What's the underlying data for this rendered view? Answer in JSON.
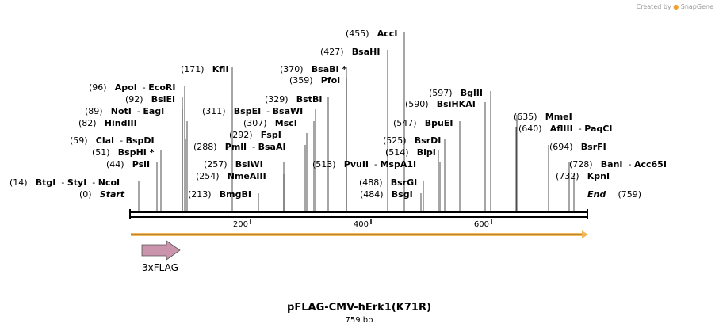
{
  "branding": {
    "label": "Created by",
    "name": "SnapGene"
  },
  "map": {
    "name": "pFLAG-CMV-hErk1(K71R)",
    "length_label": "759 bp"
  },
  "ruler": {
    "ticks": [
      "200",
      "400",
      "600"
    ]
  },
  "feature": {
    "name": "3xFLAG",
    "color": "#c994ac"
  },
  "orf_color": "#f0b65a",
  "labels": [
    {
      "pos": "(455)",
      "names": [
        "AccI"
      ]
    },
    {
      "pos": "(427)",
      "names": [
        "BsaHI"
      ]
    },
    {
      "pos": "(171)",
      "names": [
        "KflI"
      ]
    },
    {
      "pos": "(370)",
      "names": [
        "BsaBI *"
      ]
    },
    {
      "pos": "(96)",
      "names": [
        "ApoI",
        "EcoRI"
      ]
    },
    {
      "pos": "(359)",
      "names": [
        "PfoI"
      ]
    },
    {
      "pos": "(92)",
      "names": [
        "BsiEI"
      ]
    },
    {
      "pos": "(597)",
      "names": [
        "BglII"
      ]
    },
    {
      "pos": "(329)",
      "names": [
        "BstBI"
      ]
    },
    {
      "pos": "(590)",
      "names": [
        "BsiHKAI"
      ]
    },
    {
      "pos": "(89)",
      "names": [
        "NotI",
        "EagI"
      ]
    },
    {
      "pos": "(311)",
      "names": [
        "BspEI",
        "BsaWI"
      ]
    },
    {
      "pos": "(635)",
      "names": [
        "MmeI"
      ]
    },
    {
      "pos": "(82)",
      "names": [
        "HindIII"
      ]
    },
    {
      "pos": "(307)",
      "names": [
        "MscI"
      ]
    },
    {
      "pos": "(547)",
      "names": [
        "BpuEI"
      ]
    },
    {
      "pos": "(640)",
      "names": [
        "AflIII",
        "PaqCI"
      ]
    },
    {
      "pos": "(292)",
      "names": [
        "FspI"
      ]
    },
    {
      "pos": "(59)",
      "names": [
        "ClaI",
        "BspDI"
      ]
    },
    {
      "pos": "(525)",
      "names": [
        "BsrDI"
      ]
    },
    {
      "pos": "(288)",
      "names": [
        "PmlI",
        "BsaAI"
      ]
    },
    {
      "pos": "(694)",
      "names": [
        "BsrFI"
      ]
    },
    {
      "pos": "(51)",
      "names": [
        "BspHI *"
      ]
    },
    {
      "pos": "(514)",
      "names": [
        "BlpI"
      ]
    },
    {
      "pos": "(44)",
      "names": [
        "PsiI"
      ]
    },
    {
      "pos": "(257)",
      "names": [
        "BsiWI"
      ]
    },
    {
      "pos": "(513)",
      "names": [
        "PvuII",
        "MspA1I"
      ]
    },
    {
      "pos": "(728)",
      "names": [
        "BanI",
        "Acc65I"
      ]
    },
    {
      "pos": "(254)",
      "names": [
        "NmeAIII"
      ]
    },
    {
      "pos": "(732)",
      "names": [
        "KpnI"
      ]
    },
    {
      "pos": "(14)",
      "names": [
        "BtgI",
        "StyI",
        "NcoI"
      ]
    },
    {
      "pos": "(488)",
      "names": [
        "BsrGI"
      ]
    },
    {
      "pos": "(0)",
      "names": [
        "Start"
      ]
    },
    {
      "pos": "(213)",
      "names": [
        "BmgBI"
      ]
    },
    {
      "pos": "(484)",
      "names": [
        "BsgI"
      ]
    },
    {
      "pos": "(759)",
      "names": [
        "End"
      ]
    }
  ]
}
